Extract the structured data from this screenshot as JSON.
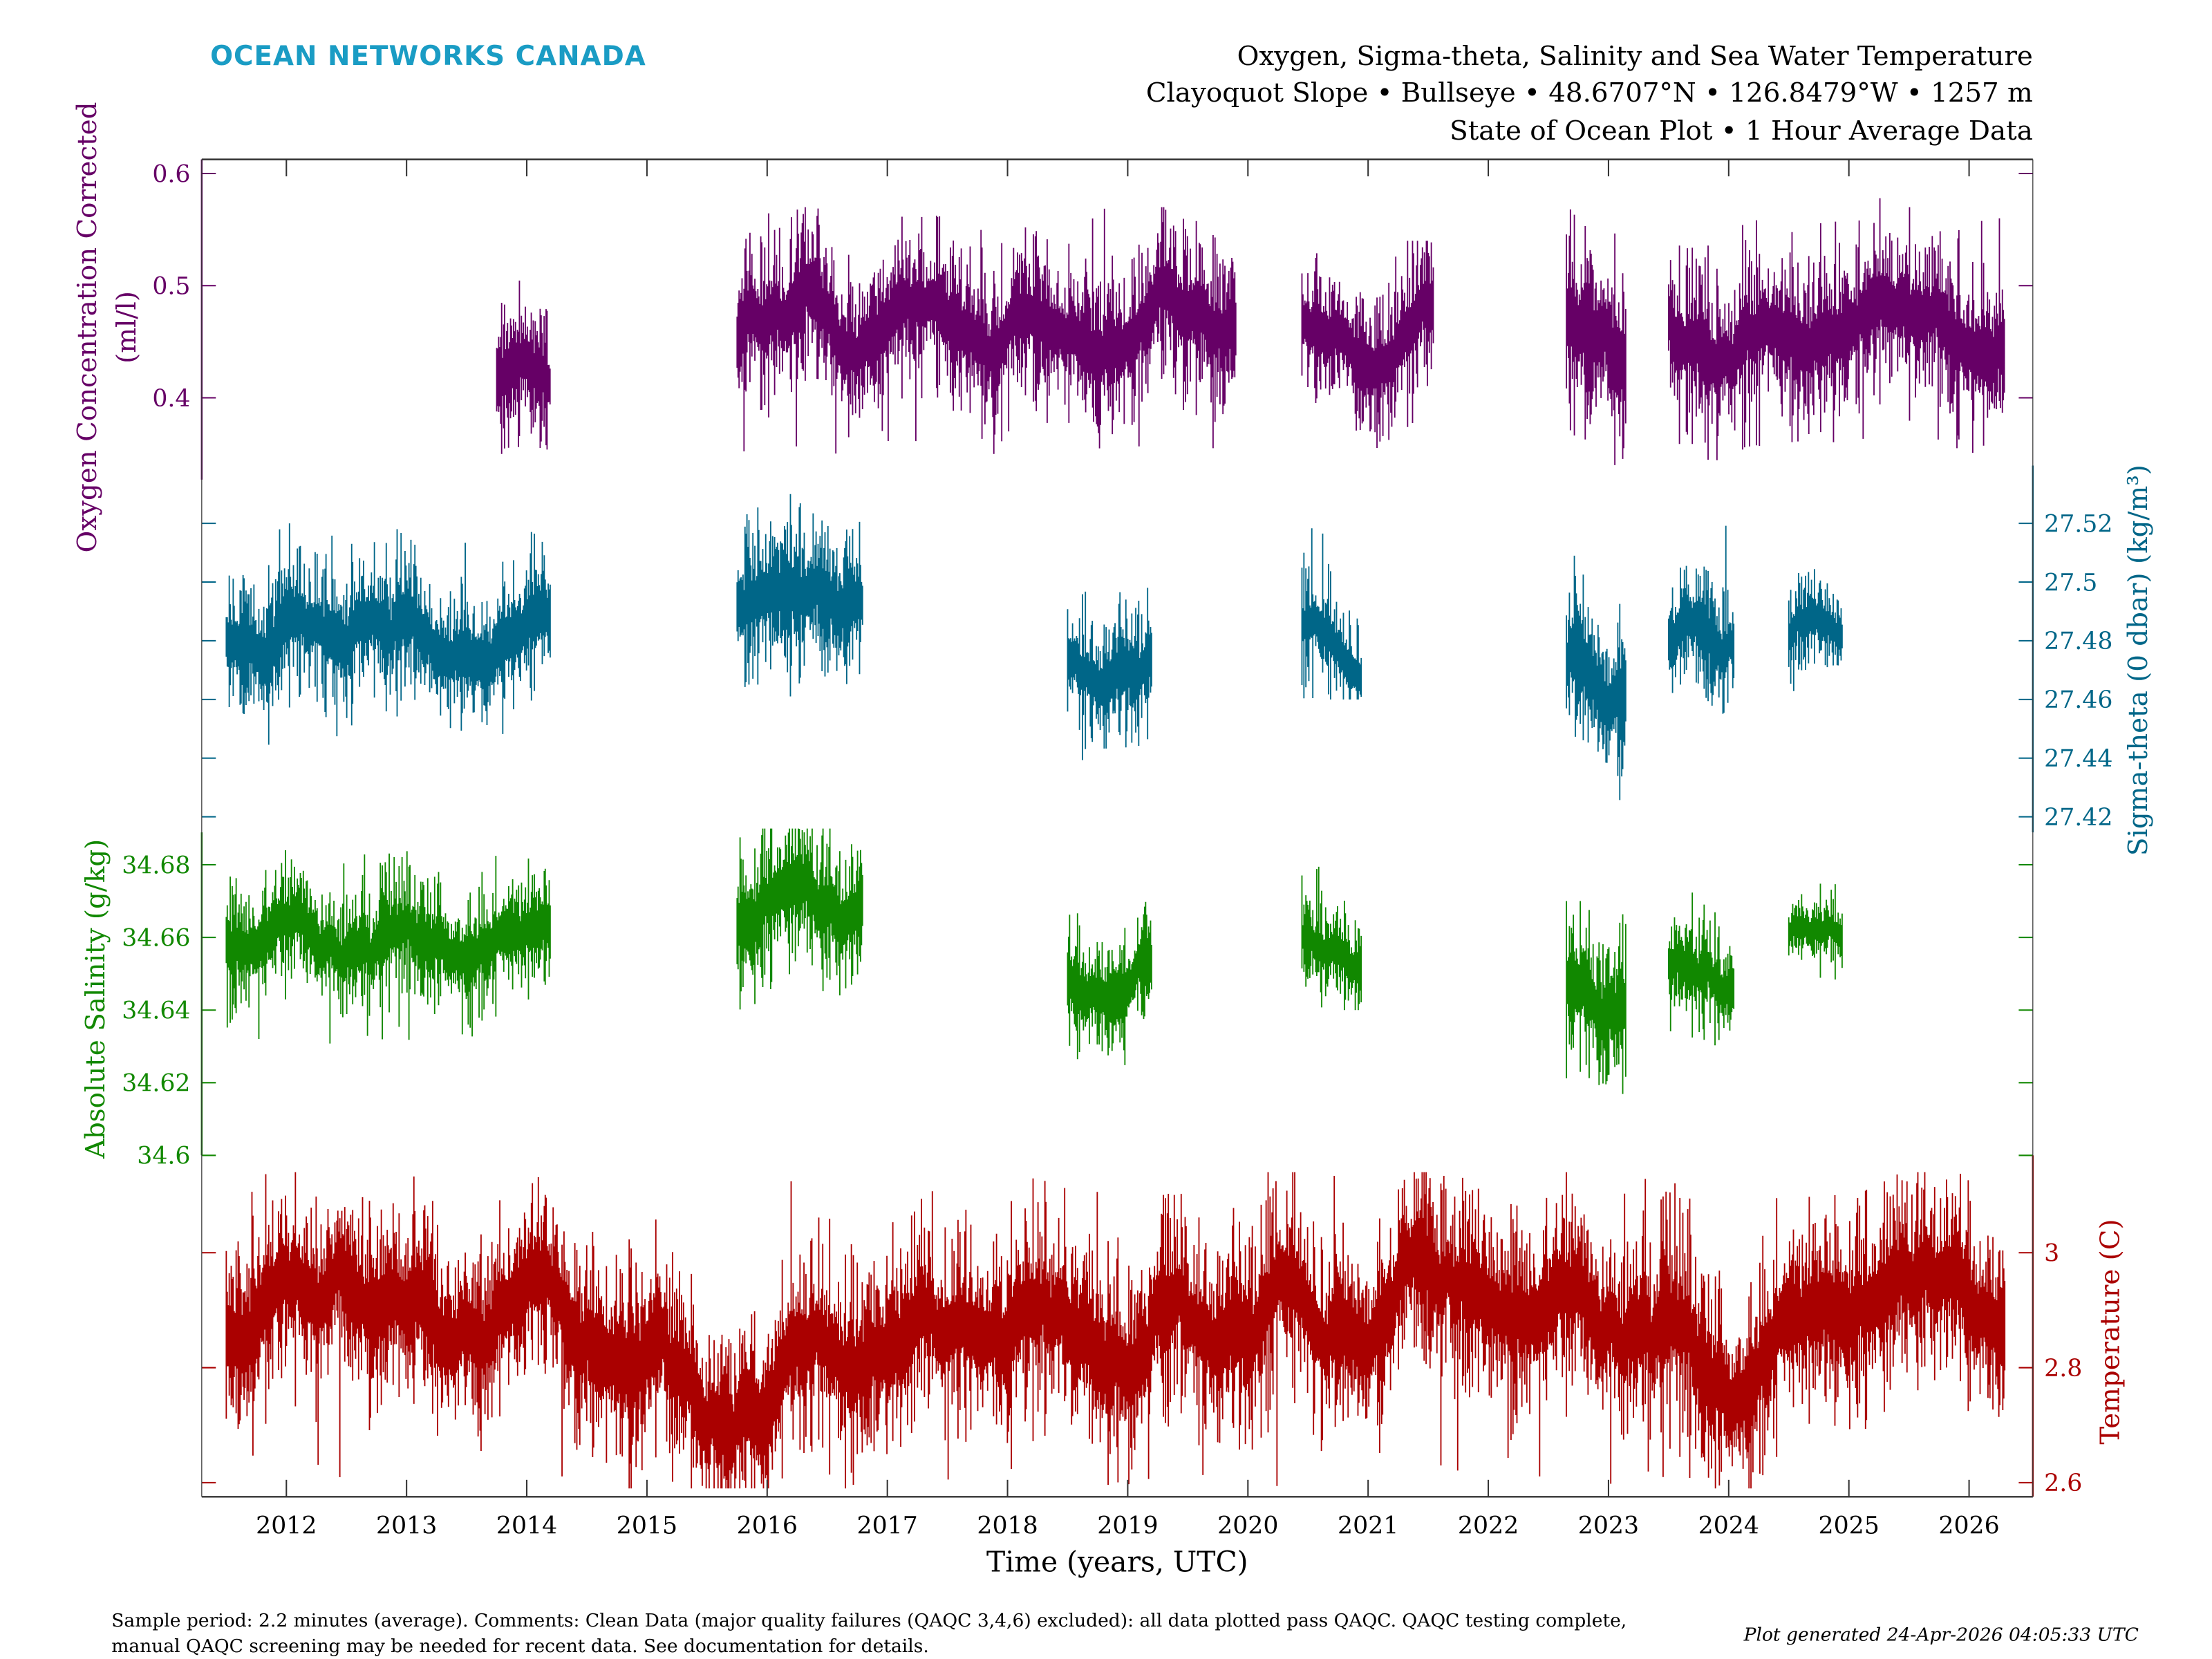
{
  "header": {
    "brand": "OCEAN NETWORKS CANADA",
    "brand_color": "#1a9cc4",
    "title_lines": [
      "Oxygen, Sigma-theta, Salinity and Sea Water Temperature",
      "Clayoquot Slope • Bullseye • 48.6707°N • 126.8479°W • 1257 m",
      "State of Ocean Plot • 1 Hour Average Data"
    ]
  },
  "footer": {
    "comment_lines": [
      "Sample period: 2.2 minutes (average). Comments: Clean Data (major quality failures (QAQC 3,4,6) excluded): all data plotted pass QAQC. QAQC testing complete,",
      "manual QAQC screening may be needed for recent data. See documentation for details."
    ],
    "generated": "Plot generated 24-Apr-2026 04:05:33 UTC"
  },
  "chart_data": {
    "type": "line",
    "xlabel": "Time (years, UTC)",
    "xlim": [
      2011.3,
      2026.6
    ],
    "xticks": [
      "2012",
      "2013",
      "2014",
      "2015",
      "2016",
      "2017",
      "2018",
      "2019",
      "2020",
      "2021",
      "2022",
      "2023",
      "2024",
      "2025",
      "2026"
    ],
    "grid": false,
    "series": [
      {
        "name": "Oxygen Concentration Corrected",
        "ylabel_lines": [
          "Oxygen Concentration Corrected",
          "(ml/l)"
        ],
        "axis": "left",
        "color": "#660066",
        "yticks": [
          "0.4",
          "0.5",
          "0.6"
        ],
        "segments": [
          {
            "start": 2013.75,
            "end": 2014.2,
            "mean": 0.42,
            "min": 0.35,
            "max": 0.54
          },
          {
            "start": 2015.75,
            "end": 2019.9,
            "mean": 0.46,
            "min": 0.35,
            "max": 0.57
          },
          {
            "start": 2020.45,
            "end": 2021.55,
            "mean": 0.45,
            "min": 0.33,
            "max": 0.54
          },
          {
            "start": 2022.65,
            "end": 2023.15,
            "mean": 0.46,
            "min": 0.34,
            "max": 0.61
          },
          {
            "start": 2023.5,
            "end": 2026.3,
            "mean": 0.46,
            "min": 0.34,
            "max": 0.58
          }
        ]
      },
      {
        "name": "Sigma-theta (0 dbar)",
        "ylabel": "Sigma-theta (0 dbar) (kg/m³)",
        "axis": "right",
        "color": "#006688",
        "yticks": [
          "27.42",
          "27.44",
          "27.46",
          "27.48",
          "27.5",
          "27.52"
        ],
        "segments": [
          {
            "start": 2011.5,
            "end": 2014.2,
            "mean": 27.485,
            "min": 27.44,
            "max": 27.52
          },
          {
            "start": 2015.75,
            "end": 2016.8,
            "mean": 27.495,
            "min": 27.45,
            "max": 27.53
          },
          {
            "start": 2018.5,
            "end": 2019.2,
            "mean": 27.47,
            "min": 27.43,
            "max": 27.5
          },
          {
            "start": 2020.45,
            "end": 2020.95,
            "mean": 27.48,
            "min": 27.46,
            "max": 27.52
          },
          {
            "start": 2022.65,
            "end": 2023.15,
            "mean": 27.47,
            "min": 27.42,
            "max": 27.51
          },
          {
            "start": 2023.5,
            "end": 2024.05,
            "mean": 27.475,
            "min": 27.45,
            "max": 27.52
          },
          {
            "start": 2024.5,
            "end": 2024.95,
            "mean": 27.48,
            "min": 27.46,
            "max": 27.51
          }
        ]
      },
      {
        "name": "Absolute Salinity",
        "ylabel": "Absolute Salinity (g/kg)",
        "axis": "left",
        "color": "#118800",
        "yticks": [
          "34.6",
          "34.62",
          "34.64",
          "34.66",
          "34.68"
        ],
        "segments": [
          {
            "start": 2011.5,
            "end": 2014.2,
            "mean": 34.662,
            "min": 34.63,
            "max": 34.684
          },
          {
            "start": 2015.75,
            "end": 2016.8,
            "mean": 34.666,
            "min": 34.625,
            "max": 34.69
          },
          {
            "start": 2018.5,
            "end": 2019.2,
            "mean": 34.648,
            "min": 34.615,
            "max": 34.67
          },
          {
            "start": 2020.45,
            "end": 2020.95,
            "mean": 34.656,
            "min": 34.64,
            "max": 34.68
          },
          {
            "start": 2022.65,
            "end": 2023.15,
            "mean": 34.645,
            "min": 34.6,
            "max": 34.67
          },
          {
            "start": 2023.5,
            "end": 2024.05,
            "mean": 34.65,
            "min": 34.63,
            "max": 34.678
          },
          {
            "start": 2024.5,
            "end": 2024.95,
            "mean": 34.659,
            "min": 34.645,
            "max": 34.677
          }
        ]
      },
      {
        "name": "Temperature",
        "ylabel": "Temperature (C)",
        "axis": "right",
        "color": "#aa0000",
        "yticks": [
          "2.6",
          "2.8",
          "3"
        ],
        "segments": [
          {
            "start": 2011.5,
            "end": 2026.3,
            "mean": 2.88,
            "min": 2.59,
            "max": 3.14
          }
        ],
        "approx_annual_mean": {
          "2012": 2.88,
          "2013": 2.9,
          "2014": 2.92,
          "2015": 2.86,
          "2016": 2.76,
          "2017": 2.87,
          "2018": 2.9,
          "2019": 2.86,
          "2020": 2.88,
          "2021": 2.93,
          "2022": 2.88,
          "2023": 2.93,
          "2024": 2.82,
          "2025": 2.93,
          "2026": 2.9
        }
      }
    ]
  }
}
